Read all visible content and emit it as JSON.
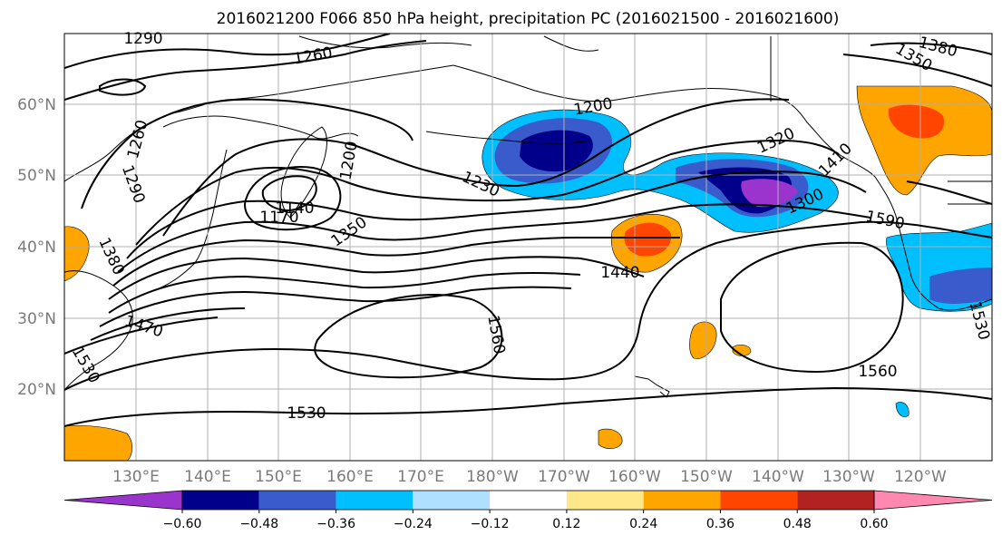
{
  "title": "2016021200 F066 850 hPa height, precipitation PC (2016021500 - 2016021600)",
  "lat_labels": [
    "60°N",
    "50°N",
    "40°N",
    "30°N",
    "20°N"
  ],
  "lon_labels": [
    "130°E",
    "140°E",
    "150°E",
    "160°E",
    "170°E",
    "180°W",
    "170°W",
    "160°W",
    "150°W",
    "140°W",
    "130°W",
    "120°W"
  ],
  "contour_labels": [
    "1290",
    "1260",
    "1260",
    "1290",
    "1200",
    "1140",
    "1170",
    "1230",
    "1200",
    "1320",
    "1380",
    "1350",
    "1350",
    "1410",
    "1300",
    "1590",
    "1380",
    "1440",
    "1470",
    "1560",
    "1560",
    "1530",
    "1530",
    "1530"
  ],
  "colorbar": {
    "ticks": [
      "−0.60",
      "−0.48",
      "−0.36",
      "−0.24",
      "−0.12",
      "0.12",
      "0.24",
      "0.36",
      "0.48",
      "0.60"
    ],
    "colors": [
      "#9a34cc",
      "#00008b",
      "#3a5bcc",
      "#00bfff",
      "#b0e0ff",
      "#ffffff",
      "#ffe88a",
      "#ffa500",
      "#ff4500",
      "#b22222",
      "#ff88b0"
    ]
  }
}
